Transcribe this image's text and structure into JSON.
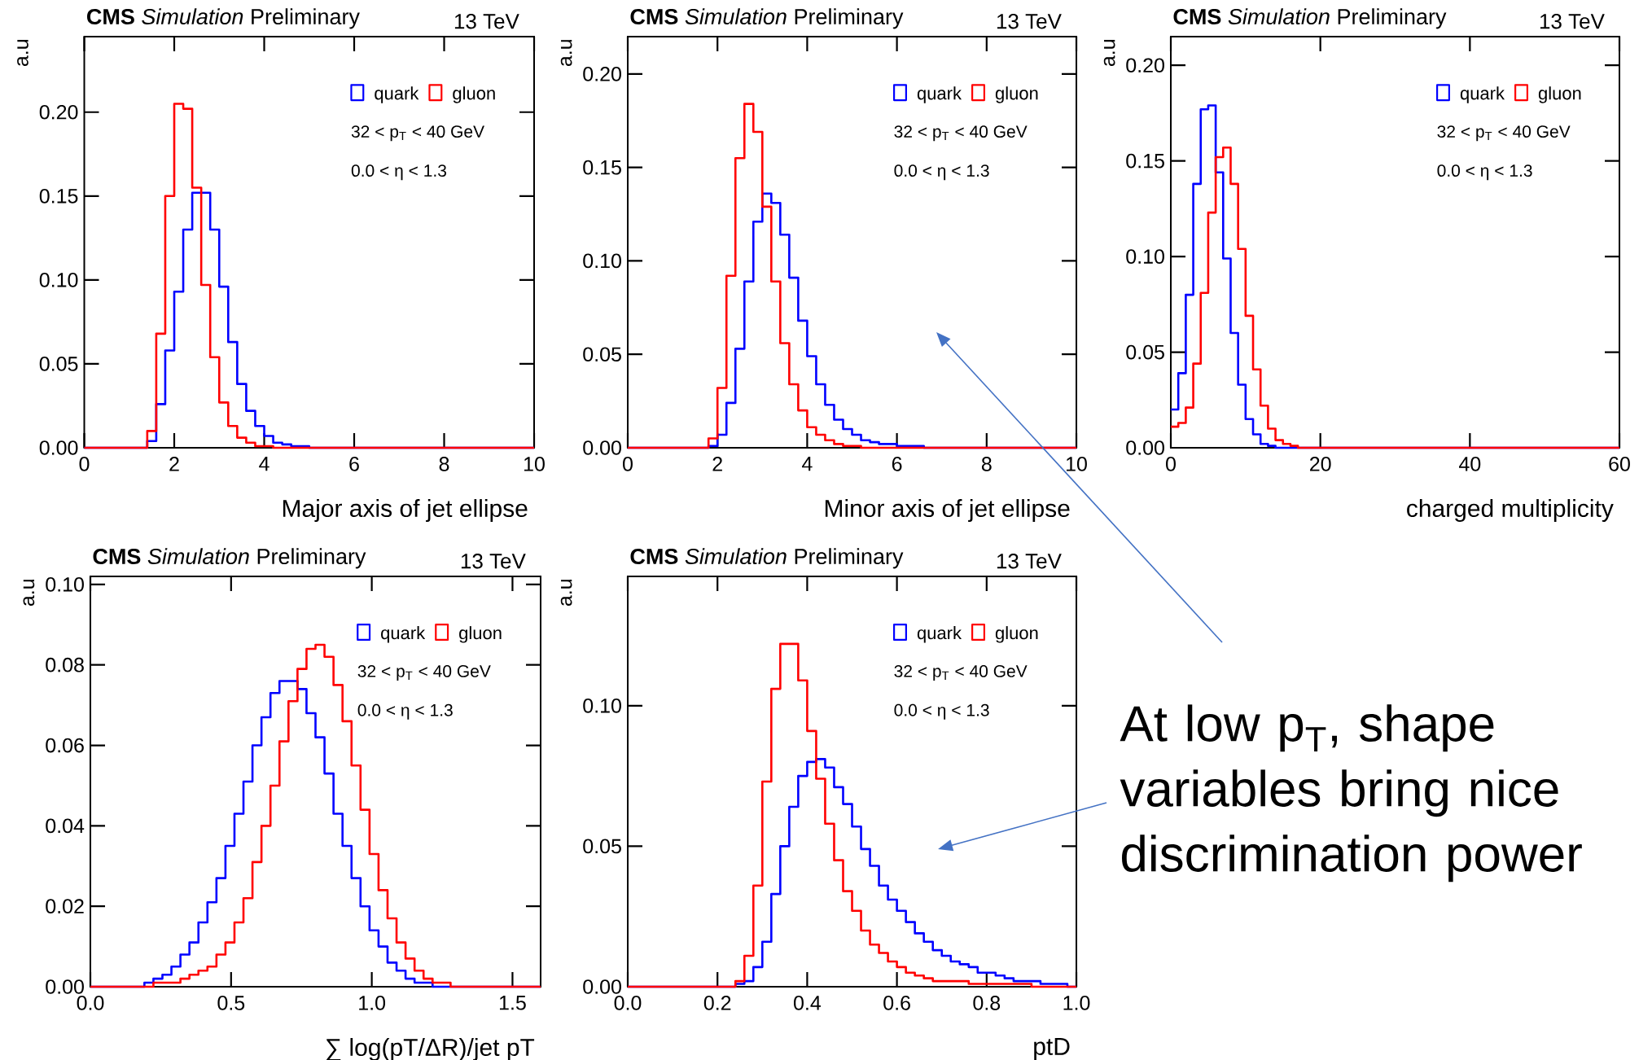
{
  "chart_data": [
    {
      "type": "histogram",
      "title": "**CMS** *Simulation* Preliminary",
      "subtitle": "13 TeV",
      "xlabel": "Major axis of jet ellipse",
      "ylabel": "a.u",
      "legend": "top right",
      "annotations": [
        "32 < p$_{T}$ < 40 GeV",
        "0.0 < η < 1.3"
      ],
      "xlim": [
        0,
        10
      ],
      "ylim": [
        0,
        0.245
      ],
      "xticks": [
        0,
        2,
        4,
        6,
        8,
        10
      ],
      "yticks": [
        {
          "value": 0,
          "label": "0.00"
        },
        {
          "value": 0.05,
          "label": "0.05"
        },
        {
          "value": 0.1,
          "label": "0.10"
        },
        {
          "value": 0.15,
          "label": "0.15"
        },
        {
          "value": 0.2,
          "label": "0.20"
        }
      ],
      "bins": [
        0,
        1.4,
        1.6,
        1.8,
        2.0,
        2.2,
        2.4,
        2.6,
        2.8,
        3.0,
        3.2,
        3.4,
        3.6,
        3.8,
        4.0,
        4.2,
        4.4,
        4.6,
        4.8,
        5.0,
        10
      ],
      "series": [
        {
          "name": "quark",
          "color": "#0000ff",
          "values": [
            0,
            0.004,
            0.026,
            0.058,
            0.093,
            0.13,
            0.152,
            0.152,
            0.13,
            0.096,
            0.063,
            0.038,
            0.022,
            0.013,
            0.007,
            0.003,
            0.002,
            0.001,
            0.001,
            0
          ]
        },
        {
          "name": "gluon",
          "color": "#ff0000",
          "values": [
            0,
            0.01,
            0.068,
            0.15,
            0.205,
            0.202,
            0.155,
            0.097,
            0.054,
            0.027,
            0.013,
            0.006,
            0.003,
            0.001,
            0.001,
            0,
            0,
            0,
            0,
            0
          ]
        }
      ]
    },
    {
      "type": "histogram",
      "title": "**CMS** *Simulation* Preliminary",
      "subtitle": "13 TeV",
      "xlabel": "Minor axis of jet ellipse",
      "ylabel": "a.u",
      "legend": "top right",
      "annotations": [
        "32 < p$_{T}$ < 40 GeV",
        "0.0 < η < 1.3"
      ],
      "xlim": [
        0,
        10
      ],
      "ylim": [
        0,
        0.22
      ],
      "xticks": [
        0,
        2,
        4,
        6,
        8,
        10
      ],
      "yticks": [
        {
          "value": 0,
          "label": "0.00"
        },
        {
          "value": 0.05,
          "label": "0.05"
        },
        {
          "value": 0.1,
          "label": "0.10"
        },
        {
          "value": 0.15,
          "label": "0.15"
        },
        {
          "value": 0.2,
          "label": "0.20"
        }
      ],
      "bins": [
        0,
        1.8,
        2.0,
        2.2,
        2.4,
        2.6,
        2.8,
        3.0,
        3.2,
        3.4,
        3.6,
        3.8,
        4.0,
        4.2,
        4.4,
        4.6,
        4.8,
        5.0,
        5.2,
        5.4,
        5.6,
        5.8,
        6.0,
        6.2,
        6.4,
        6.6,
        10
      ],
      "series": [
        {
          "name": "quark",
          "color": "#0000ff",
          "values": [
            0,
            0.001,
            0.007,
            0.024,
            0.053,
            0.089,
            0.121,
            0.136,
            0.131,
            0.114,
            0.091,
            0.068,
            0.049,
            0.034,
            0.023,
            0.015,
            0.01,
            0.007,
            0.004,
            0.003,
            0.002,
            0.002,
            0.001,
            0.001,
            0.001,
            0
          ]
        },
        {
          "name": "gluon",
          "color": "#ff0000",
          "values": [
            0,
            0.005,
            0.032,
            0.092,
            0.155,
            0.184,
            0.169,
            0.129,
            0.089,
            0.056,
            0.034,
            0.02,
            0.011,
            0.007,
            0.004,
            0.002,
            0.001,
            0.001,
            0,
            0,
            0,
            0,
            0,
            0,
            0,
            0
          ]
        }
      ]
    },
    {
      "type": "histogram",
      "title": "**CMS** *Simulation* Preliminary",
      "subtitle": "13 TeV",
      "xlabel": "charged multiplicity",
      "ylabel": "a.u",
      "legend": "top right",
      "annotations": [
        "32 < p$_{T}$ < 40 GeV",
        "0.0 < η < 1.3"
      ],
      "xlim": [
        0,
        60
      ],
      "ylim": [
        0,
        0.215
      ],
      "xticks": [
        0,
        20,
        40,
        60
      ],
      "yticks": [
        {
          "value": 0,
          "label": "0.00"
        },
        {
          "value": 0.05,
          "label": "0.05"
        },
        {
          "value": 0.1,
          "label": "0.10"
        },
        {
          "value": 0.15,
          "label": "0.15"
        },
        {
          "value": 0.2,
          "label": "0.20"
        }
      ],
      "bins": [
        0,
        1,
        2,
        3,
        4,
        5,
        6,
        7,
        8,
        9,
        10,
        11,
        12,
        13,
        14,
        15,
        16,
        17,
        60
      ],
      "series": [
        {
          "name": "quark",
          "color": "#0000ff",
          "values": [
            0.02,
            0.039,
            0.08,
            0.138,
            0.177,
            0.179,
            0.144,
            0.099,
            0.06,
            0.033,
            0.015,
            0.007,
            0.002,
            0.001,
            0,
            0,
            0,
            0
          ]
        },
        {
          "name": "gluon",
          "color": "#ff0000",
          "values": [
            0.011,
            0.013,
            0.021,
            0.044,
            0.081,
            0.123,
            0.152,
            0.157,
            0.138,
            0.104,
            0.069,
            0.041,
            0.022,
            0.01,
            0.004,
            0.002,
            0.001,
            0
          ]
        }
      ]
    },
    {
      "type": "histogram",
      "title": "**CMS** *Simulation* Preliminary",
      "subtitle": "13 TeV",
      "xlabel": "∑ log(pT/ΔR)/jet pT",
      "ylabel": "a.u",
      "legend": "top right",
      "annotations": [
        "32 < p$_{T}$ < 40 GeV",
        "0.0 < η < 1.3"
      ],
      "xlim": [
        0,
        1.6
      ],
      "ylim": [
        0,
        0.102
      ],
      "xticks": [
        {
          "value": 0,
          "label": "0.0"
        },
        {
          "value": 0.5,
          "label": "0.5"
        },
        {
          "value": 1,
          "label": "1.0"
        },
        {
          "value": 1.5,
          "label": "1.5"
        }
      ],
      "yticks": [
        {
          "value": 0,
          "label": "0.00"
        },
        {
          "value": 0.02,
          "label": "0.02"
        },
        {
          "value": 0.04,
          "label": "0.04"
        },
        {
          "value": 0.06,
          "label": "0.06"
        },
        {
          "value": 0.08,
          "label": "0.08"
        },
        {
          "value": 0.1,
          "label": "0.10"
        }
      ],
      "bins": [
        0,
        0.16,
        0.192,
        0.224,
        0.256,
        0.288,
        0.32,
        0.352,
        0.384,
        0.416,
        0.448,
        0.48,
        0.512,
        0.544,
        0.576,
        0.608,
        0.64,
        0.672,
        0.704,
        0.736,
        0.768,
        0.8,
        0.832,
        0.864,
        0.896,
        0.928,
        0.96,
        0.992,
        1.024,
        1.056,
        1.088,
        1.12,
        1.152,
        1.184,
        1.216,
        1.248,
        1.28,
        1.6
      ],
      "series": [
        {
          "name": "quark",
          "color": "#0000ff",
          "values": [
            0,
            0,
            0.001,
            0.002,
            0.003,
            0.005,
            0.008,
            0.011,
            0.016,
            0.021,
            0.027,
            0.035,
            0.043,
            0.051,
            0.06,
            0.067,
            0.073,
            0.076,
            0.076,
            0.074,
            0.068,
            0.062,
            0.053,
            0.043,
            0.035,
            0.027,
            0.02,
            0.014,
            0.01,
            0.006,
            0.004,
            0.002,
            0.001,
            0.001,
            0,
            0,
            0
          ]
        },
        {
          "name": "gluon",
          "color": "#ff0000",
          "values": [
            0,
            0,
            0,
            0.001,
            0.001,
            0.001,
            0.002,
            0.003,
            0.004,
            0.005,
            0.008,
            0.011,
            0.016,
            0.022,
            0.031,
            0.04,
            0.05,
            0.061,
            0.071,
            0.079,
            0.084,
            0.085,
            0.082,
            0.075,
            0.066,
            0.055,
            0.044,
            0.033,
            0.024,
            0.017,
            0.011,
            0.007,
            0.004,
            0.002,
            0.001,
            0.001,
            0
          ]
        }
      ]
    },
    {
      "type": "histogram",
      "title": "**CMS** *Simulation* Preliminary",
      "subtitle": "13 TeV",
      "xlabel": "ptD",
      "ylabel": "a.u",
      "legend": "top right",
      "annotations": [
        "32 < p$_{T}$ < 40 GeV",
        "0.0 < η < 1.3"
      ],
      "xlim": [
        0,
        1
      ],
      "ylim": [
        0,
        0.146
      ],
      "xticks": [
        {
          "value": 0,
          "label": "0.0"
        },
        {
          "value": 0.2,
          "label": "0.2"
        },
        {
          "value": 0.4,
          "label": "0.4"
        },
        {
          "value": 0.6,
          "label": "0.6"
        },
        {
          "value": 0.8,
          "label": "0.8"
        },
        {
          "value": 1,
          "label": "1.0"
        }
      ],
      "yticks": [
        {
          "value": 0,
          "label": "0.00"
        },
        {
          "value": 0.05,
          "label": "0.05"
        },
        {
          "value": 0.1,
          "label": "0.10"
        }
      ],
      "bins": [
        0,
        0.24,
        0.26,
        0.28,
        0.3,
        0.32,
        0.34,
        0.36,
        0.38,
        0.4,
        0.42,
        0.44,
        0.46,
        0.48,
        0.5,
        0.52,
        0.54,
        0.56,
        0.58,
        0.6,
        0.62,
        0.64,
        0.66,
        0.68,
        0.7,
        0.72,
        0.74,
        0.76,
        0.78,
        0.8,
        0.82,
        0.84,
        0.86,
        0.88,
        0.9,
        0.92,
        0.94,
        0.96,
        0.98,
        1.0
      ],
      "series": [
        {
          "name": "quark",
          "color": "#0000ff",
          "values": [
            0,
            0.001,
            0.002,
            0.007,
            0.016,
            0.033,
            0.05,
            0.064,
            0.075,
            0.08,
            0.081,
            0.078,
            0.071,
            0.065,
            0.057,
            0.049,
            0.043,
            0.036,
            0.031,
            0.027,
            0.023,
            0.019,
            0.016,
            0.013,
            0.011,
            0.009,
            0.008,
            0.007,
            0.005,
            0.005,
            0.004,
            0.003,
            0.002,
            0.002,
            0.002,
            0.001,
            0.001,
            0.001,
            0
          ]
        },
        {
          "name": "gluon",
          "color": "#ff0000",
          "values": [
            0,
            0.002,
            0.011,
            0.036,
            0.073,
            0.106,
            0.122,
            0.122,
            0.109,
            0.091,
            0.074,
            0.058,
            0.045,
            0.034,
            0.027,
            0.02,
            0.015,
            0.012,
            0.009,
            0.007,
            0.005,
            0.004,
            0.003,
            0.002,
            0.002,
            0.002,
            0.002,
            0.001,
            0.001,
            0.001,
            0.001,
            0.001,
            0.001,
            0.001,
            0,
            0,
            0,
            0,
            0
          ]
        }
      ]
    },
    {
      "type": "other",
      "annotations": [
        "At low p$_{T}$, shape variables bring nice discrimination power"
      ]
    }
  ]
}
